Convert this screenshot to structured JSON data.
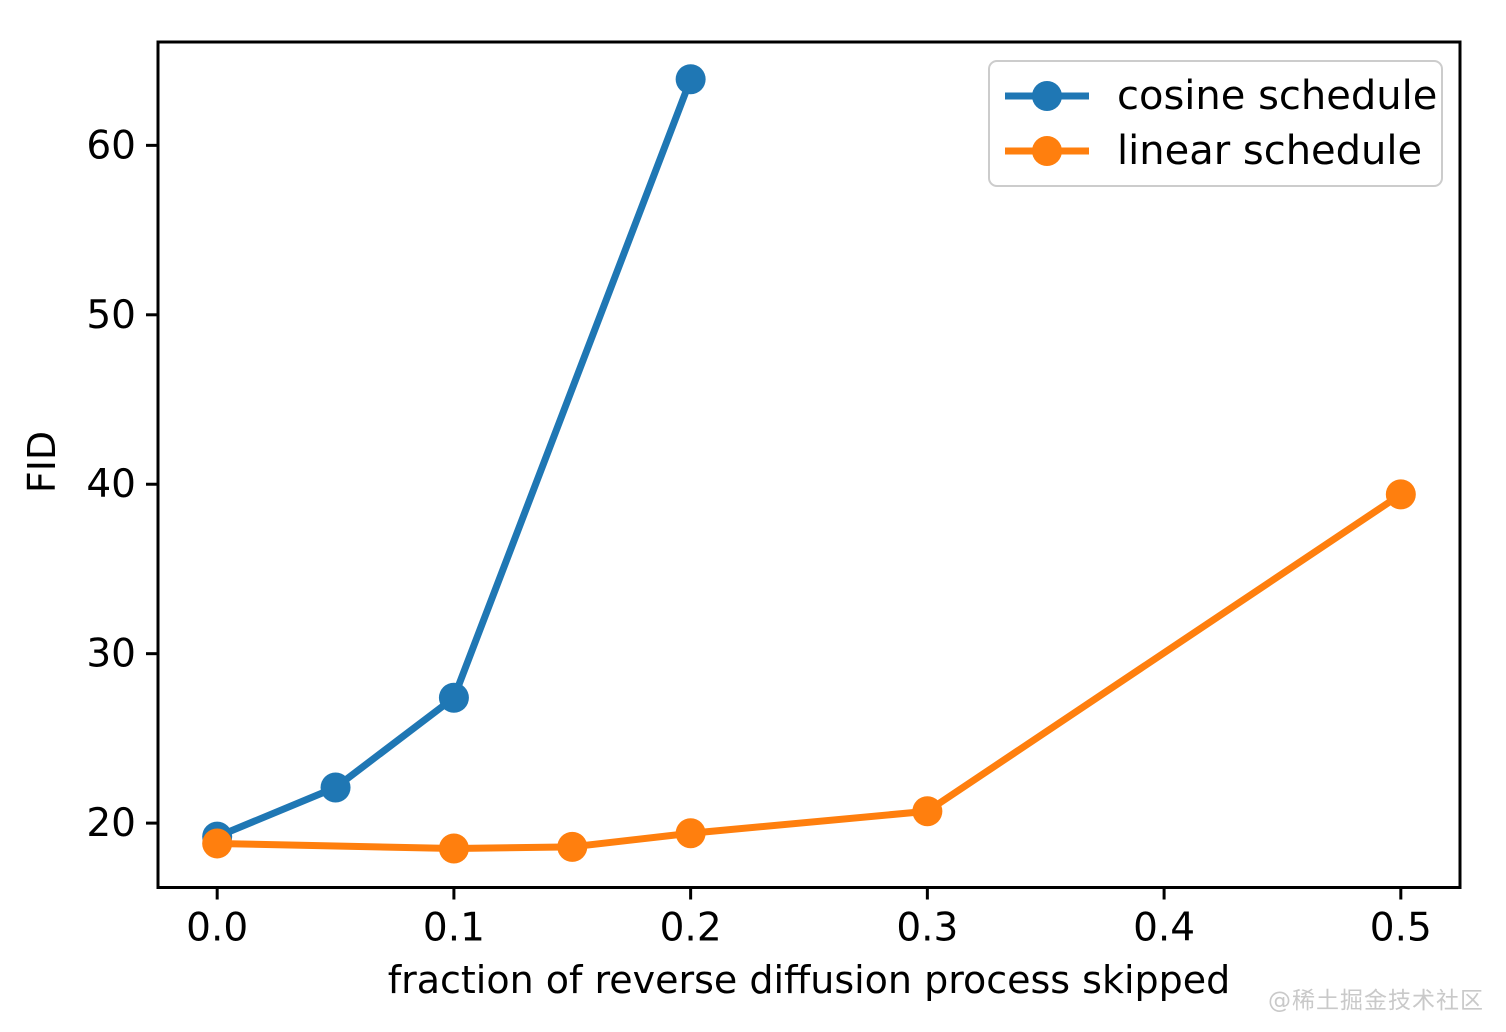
{
  "chart_data": {
    "type": "line",
    "title": "",
    "xlabel": "fraction of reverse diffusion process skipped",
    "ylabel": "FID",
    "xlim": [
      -0.025,
      0.525
    ],
    "ylim": [
      16.2,
      66.1
    ],
    "x_ticks": [
      0.0,
      0.1,
      0.2,
      0.3,
      0.4,
      0.5
    ],
    "x_tick_labels": [
      "0.0",
      "0.1",
      "0.2",
      "0.3",
      "0.4",
      "0.5"
    ],
    "y_ticks": [
      20,
      30,
      40,
      50,
      60
    ],
    "y_tick_labels": [
      "20",
      "30",
      "40",
      "50",
      "60"
    ],
    "grid": false,
    "legend_position": "upper right",
    "series": [
      {
        "name": "cosine schedule",
        "color": "#1f77b4",
        "marker": "circle",
        "x": [
          0.0,
          0.05,
          0.1,
          0.2
        ],
        "y": [
          19.2,
          22.1,
          27.4,
          63.9
        ]
      },
      {
        "name": "linear schedule",
        "color": "#ff7f0e",
        "marker": "circle",
        "x": [
          0.0,
          0.1,
          0.15,
          0.2,
          0.3,
          0.5
        ],
        "y": [
          18.8,
          18.5,
          18.6,
          19.4,
          20.7,
          39.4
        ]
      }
    ]
  },
  "watermark": {
    "text": "@稀土掘金技术社区",
    "color": "#c9c9c9"
  },
  "style": {
    "axis_color": "#000000",
    "background": "#ffffff",
    "legend_border": "#cccccc"
  }
}
